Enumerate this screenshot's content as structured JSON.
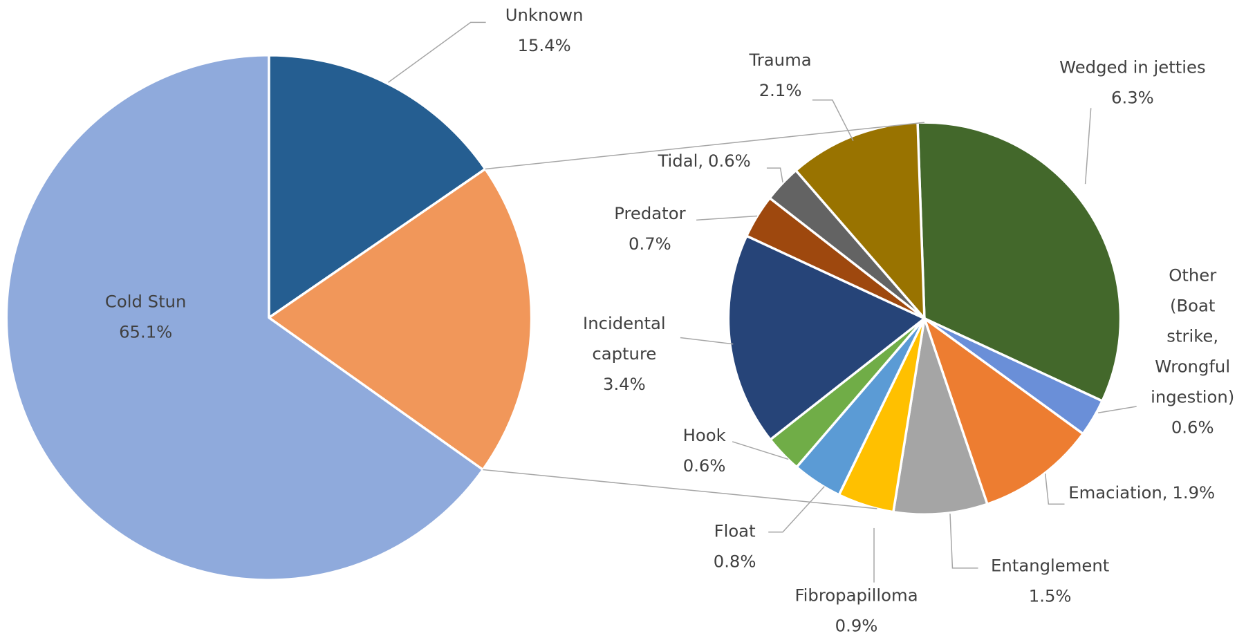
{
  "chart_data": [
    {
      "type": "pie",
      "categories": [
        "Unknown",
        null,
        "Cold Stun"
      ],
      "values": [
        15.4,
        19.4,
        65.1
      ],
      "value_labels": [
        "15.4%",
        null,
        "65.1%"
      ],
      "colors": [
        "#255e91",
        "#f1975a",
        "#8faadc"
      ]
    },
    {
      "type": "pie",
      "categories": [
        "Wedged in jetties",
        "Other (Boat strike, Wrongful ingestion)",
        "Emaciation",
        "Entanglement",
        "Fibropapilloma",
        "Float",
        "Hook",
        "Incidental capture",
        "Predator",
        "Tidal",
        "Trauma"
      ],
      "values": [
        6.3,
        0.6,
        1.9,
        1.5,
        0.9,
        0.8,
        0.6,
        3.4,
        0.7,
        0.6,
        2.1
      ],
      "value_labels": [
        "6.3%",
        "0.6%",
        "1.9%",
        "1.5%",
        "0.9%",
        "0.8%",
        "0.6%",
        "3.4%",
        "0.7%",
        "0.6%",
        "2.1%"
      ],
      "label_separator": ",",
      "colors": [
        "#43682b",
        "#6a8fd8",
        "#ed7d31",
        "#a5a5a5",
        "#ffc000",
        "#5b9bd5",
        "#70ad47",
        "#264478",
        "#9e480e",
        "#636363",
        "#997300"
      ]
    }
  ]
}
